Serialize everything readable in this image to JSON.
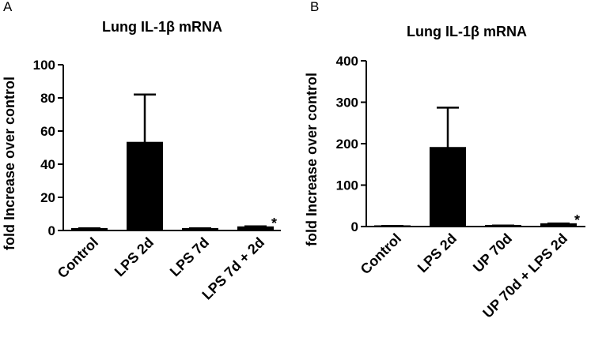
{
  "chart_data": [
    {
      "type": "bar",
      "panel": "A",
      "title": "Lung IL-1β mRNA",
      "ylabel": "fold Increase over control",
      "categories": [
        "Control",
        "LPS 2d",
        "LPS 7d",
        "LPS 7d + 2d"
      ],
      "values": [
        1,
        53,
        1,
        2
      ],
      "errors": [
        0.3,
        29,
        0.3,
        0.5
      ],
      "color": "#000000",
      "ylim": [
        0,
        100
      ],
      "yticks": [
        0,
        20,
        40,
        60,
        80,
        100
      ],
      "annotation": "*"
    },
    {
      "type": "bar",
      "panel": "B",
      "title": "Lung IL-1β mRNA",
      "ylabel": "fold Increase over control",
      "categories": [
        "Control",
        "LPS 2d",
        "UP 70d",
        "UP 70d + LPS 2d"
      ],
      "values": [
        1,
        190,
        2,
        6
      ],
      "errors": [
        0.5,
        97,
        0.5,
        1.5
      ],
      "color": "#000000",
      "ylim": [
        0,
        400
      ],
      "yticks": [
        0,
        100,
        200,
        300,
        400
      ],
      "annotation": "*"
    }
  ]
}
